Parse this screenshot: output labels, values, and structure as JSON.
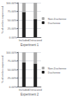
{
  "chart_data": [
    {
      "type": "bar",
      "stacked": true,
      "xlabel": "Experiment 1",
      "ylabel": "% of smiles expressed",
      "categories": [
        "Included",
        "Ostracized"
      ],
      "series": [
        {
          "name": "Duchenne",
          "color": "#222222",
          "values": [
            73,
            52
          ]
        },
        {
          "name": "Non-Duchenne",
          "color": "#aaaaaa",
          "values": [
            27,
            48
          ]
        }
      ],
      "ylim": [
        0,
        100
      ],
      "yticks": [
        {
          "value": 0,
          "label": "0.00%"
        },
        {
          "value": 25,
          "label": "25.00%"
        },
        {
          "value": 50,
          "label": "50.00%"
        },
        {
          "value": 75,
          "label": "75.00%"
        },
        {
          "value": 100,
          "label": "100.00%"
        }
      ],
      "grid": true,
      "legend": "right"
    },
    {
      "type": "bar",
      "stacked": true,
      "xlabel": "Experiment 2",
      "ylabel": "% of smiles expressed",
      "categories": [
        "Included",
        "Ostracized"
      ],
      "series": [
        {
          "name": "Duchenne",
          "color": "#222222",
          "values": [
            70,
            67
          ]
        },
        {
          "name": "Non-Duchenne",
          "color": "#aaaaaa",
          "values": [
            30,
            33
          ]
        }
      ],
      "ylim": [
        0,
        100
      ],
      "yticks": [
        {
          "value": 0,
          "label": "0.00%"
        },
        {
          "value": 25,
          "label": "25.00%"
        },
        {
          "value": 50,
          "label": "50.00%"
        },
        {
          "value": 75,
          "label": "75.00%"
        },
        {
          "value": 100,
          "label": "100.00%"
        }
      ],
      "grid": true,
      "legend": "right"
    }
  ]
}
